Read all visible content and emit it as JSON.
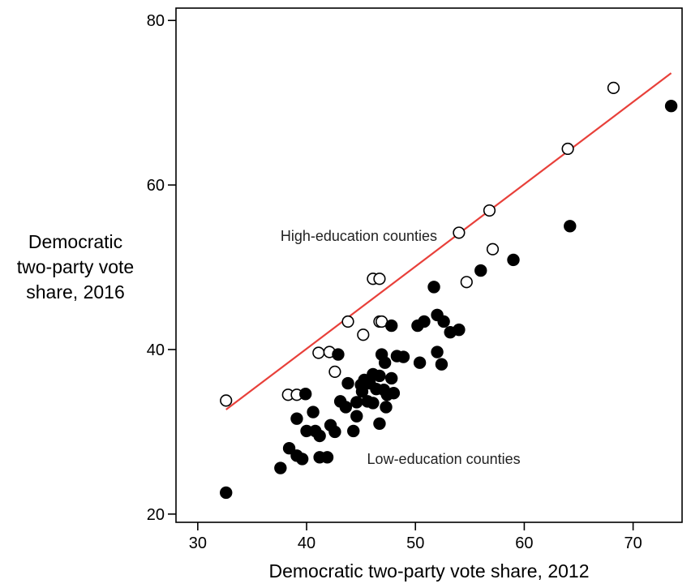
{
  "chart_data": {
    "type": "scatter",
    "xlabel": "Democratic two-party vote share, 2012",
    "ylabel_lines": [
      "Democratic",
      "two-party vote",
      "share, 2016"
    ],
    "xlim": [
      28,
      74.5
    ],
    "ylim": [
      19,
      81.5
    ],
    "xticks": [
      30,
      40,
      50,
      60,
      70
    ],
    "yticks": [
      20,
      40,
      60,
      80
    ],
    "grid": false,
    "annotations": [
      {
        "text": "High-education counties",
        "x": 44.8,
        "y": 53.2
      },
      {
        "text": "Low-education counties",
        "x": 52.6,
        "y": 26.1
      }
    ],
    "fit_line": {
      "color": "#e8403a",
      "x": [
        32.6,
        73.5
      ],
      "y": [
        32.7,
        73.6
      ]
    },
    "series": [
      {
        "marker": "open-circle",
        "points": [
          [
            32.6,
            33.8
          ],
          [
            38.3,
            34.5
          ],
          [
            39.1,
            34.5
          ],
          [
            41.1,
            39.6
          ],
          [
            42.1,
            39.7
          ],
          [
            42.6,
            37.3
          ],
          [
            43.8,
            43.4
          ],
          [
            45.2,
            41.8
          ],
          [
            46.1,
            48.6
          ],
          [
            46.7,
            48.6
          ],
          [
            46.7,
            43.4
          ],
          [
            46.9,
            43.4
          ],
          [
            54.0,
            54.2
          ],
          [
            54.7,
            48.2
          ],
          [
            56.8,
            56.9
          ],
          [
            57.1,
            52.2
          ],
          [
            64.0,
            64.4
          ],
          [
            68.2,
            71.8
          ]
        ]
      },
      {
        "marker": "filled-circle",
        "points": [
          [
            32.6,
            22.6
          ],
          [
            37.6,
            25.6
          ],
          [
            38.4,
            28.0
          ],
          [
            39.1,
            27.1
          ],
          [
            39.6,
            26.7
          ],
          [
            39.1,
            31.6
          ],
          [
            40.0,
            30.1
          ],
          [
            39.9,
            34.6
          ],
          [
            40.6,
            32.4
          ],
          [
            40.8,
            30.1
          ],
          [
            41.2,
            29.5
          ],
          [
            41.2,
            26.9
          ],
          [
            41.9,
            26.9
          ],
          [
            42.2,
            30.8
          ],
          [
            42.6,
            30.0
          ],
          [
            42.9,
            39.4
          ],
          [
            43.1,
            33.7
          ],
          [
            43.6,
            33.0
          ],
          [
            43.8,
            35.9
          ],
          [
            44.3,
            30.1
          ],
          [
            44.6,
            31.9
          ],
          [
            44.6,
            33.6
          ],
          [
            45.0,
            35.7
          ],
          [
            45.3,
            36.3
          ],
          [
            45.1,
            34.9
          ],
          [
            45.6,
            33.7
          ],
          [
            45.8,
            35.9
          ],
          [
            46.1,
            37.0
          ],
          [
            46.4,
            35.2
          ],
          [
            46.1,
            33.5
          ],
          [
            46.7,
            31.0
          ],
          [
            46.7,
            36.8
          ],
          [
            46.9,
            39.4
          ],
          [
            47.2,
            38.4
          ],
          [
            47.1,
            35.1
          ],
          [
            47.4,
            34.5
          ],
          [
            47.3,
            33.0
          ],
          [
            47.8,
            42.9
          ],
          [
            47.8,
            36.5
          ],
          [
            48.0,
            34.7
          ],
          [
            48.3,
            39.2
          ],
          [
            48.9,
            39.1
          ],
          [
            50.2,
            42.9
          ],
          [
            50.4,
            38.4
          ],
          [
            50.8,
            43.4
          ],
          [
            51.7,
            47.6
          ],
          [
            52.0,
            44.2
          ],
          [
            52.0,
            39.7
          ],
          [
            52.4,
            38.2
          ],
          [
            52.6,
            43.4
          ],
          [
            53.2,
            42.1
          ],
          [
            54.0,
            42.4
          ],
          [
            56.0,
            49.6
          ],
          [
            59.0,
            50.9
          ],
          [
            64.2,
            55.0
          ],
          [
            73.5,
            69.6
          ]
        ]
      }
    ]
  }
}
